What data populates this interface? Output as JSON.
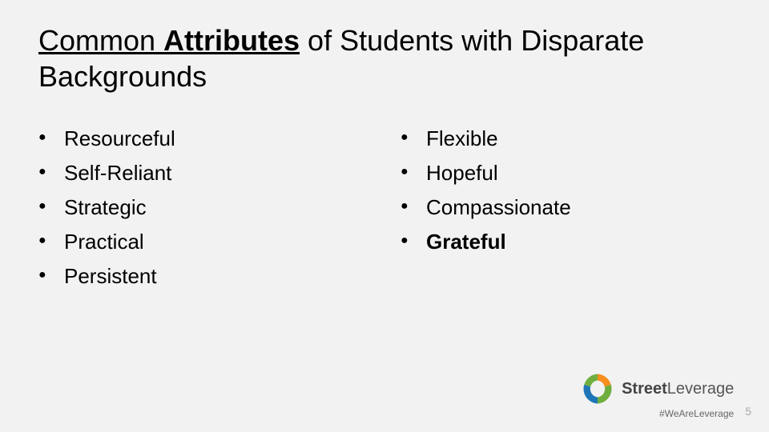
{
  "title": {
    "part1_prefix": "Common ",
    "part1_bold": "Attributes",
    "part2": " of Students with Disparate Backgrounds"
  },
  "columns": {
    "left": [
      "Resourceful",
      "Self-Reliant",
      "Strategic",
      "Practical",
      "Persistent"
    ],
    "right": [
      "Flexible",
      "Hopeful",
      "Compassionate",
      "Grateful"
    ],
    "right_bold_idx": 3
  },
  "footer": {
    "brand_first": "Street",
    "brand_second": "Leverage",
    "hashtag": "#WeAreLeverage",
    "page_number": "5"
  },
  "logo_colors": {
    "orange": "#f78e1e",
    "blue": "#1e76b6",
    "green": "#6fae3e"
  }
}
